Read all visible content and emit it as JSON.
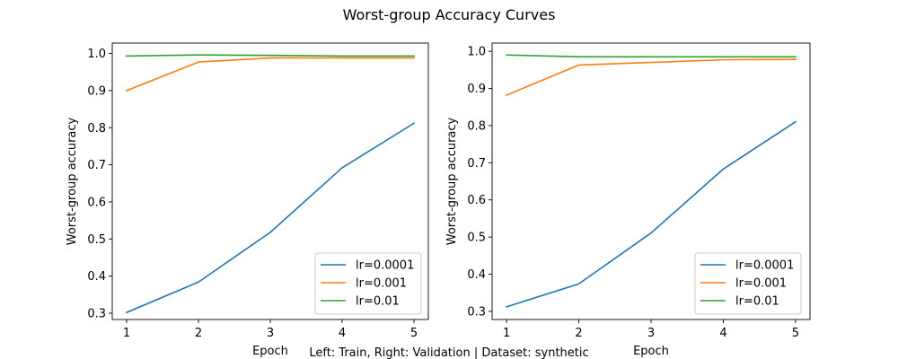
{
  "figure": {
    "title": "Worst-group Accuracy Curves",
    "caption": "Left: Train, Right: Validation | Dataset: synthetic"
  },
  "chart_data": [
    {
      "type": "line",
      "xlabel": "Epoch",
      "ylabel": "Worst-group accuracy",
      "x": [
        1,
        2,
        3,
        4,
        5
      ],
      "xlim": [
        0.8,
        5.2
      ],
      "ylim": [
        0.283,
        1.028
      ],
      "xticks": [
        1,
        2,
        3,
        4,
        5
      ],
      "yticks": [
        0.3,
        0.4,
        0.5,
        0.6,
        0.7,
        0.8,
        0.9,
        1.0
      ],
      "ytick_labels": [
        "0.3",
        "0.4",
        "0.5",
        "0.6",
        "0.7",
        "0.8",
        "0.9",
        "1.0"
      ],
      "grid": false,
      "legend_position": "lower-right",
      "series": [
        {
          "name": "lr=0.0001",
          "color": "#1f77b4",
          "values": [
            0.302,
            0.384,
            0.518,
            0.692,
            0.812
          ]
        },
        {
          "name": "lr=0.001",
          "color": "#ff7f0e",
          "values": [
            0.9,
            0.977,
            0.988,
            0.988,
            0.988
          ]
        },
        {
          "name": "lr=0.01",
          "color": "#2ca02c",
          "values": [
            0.993,
            0.996,
            0.995,
            0.993,
            0.993
          ]
        }
      ]
    },
    {
      "type": "line",
      "xlabel": "Epoch",
      "ylabel": "Worst-group accuracy",
      "x": [
        1,
        2,
        3,
        4,
        5
      ],
      "xlim": [
        0.8,
        5.2
      ],
      "ylim": [
        0.278,
        1.022
      ],
      "xticks": [
        1,
        2,
        3,
        4,
        5
      ],
      "yticks": [
        0.3,
        0.4,
        0.5,
        0.6,
        0.7,
        0.8,
        0.9,
        1.0
      ],
      "ytick_labels": [
        "0.3",
        "0.4",
        "0.5",
        "0.6",
        "0.7",
        "0.8",
        "0.9",
        "1.0"
      ],
      "grid": false,
      "legend_position": "lower-right",
      "series": [
        {
          "name": "lr=0.0001",
          "color": "#1f77b4",
          "values": [
            0.312,
            0.374,
            0.511,
            0.683,
            0.81
          ]
        },
        {
          "name": "lr=0.001",
          "color": "#ff7f0e",
          "values": [
            0.882,
            0.963,
            0.97,
            0.977,
            0.978
          ]
        },
        {
          "name": "lr=0.01",
          "color": "#2ca02c",
          "values": [
            0.99,
            0.985,
            0.985,
            0.985,
            0.985
          ]
        }
      ]
    }
  ]
}
